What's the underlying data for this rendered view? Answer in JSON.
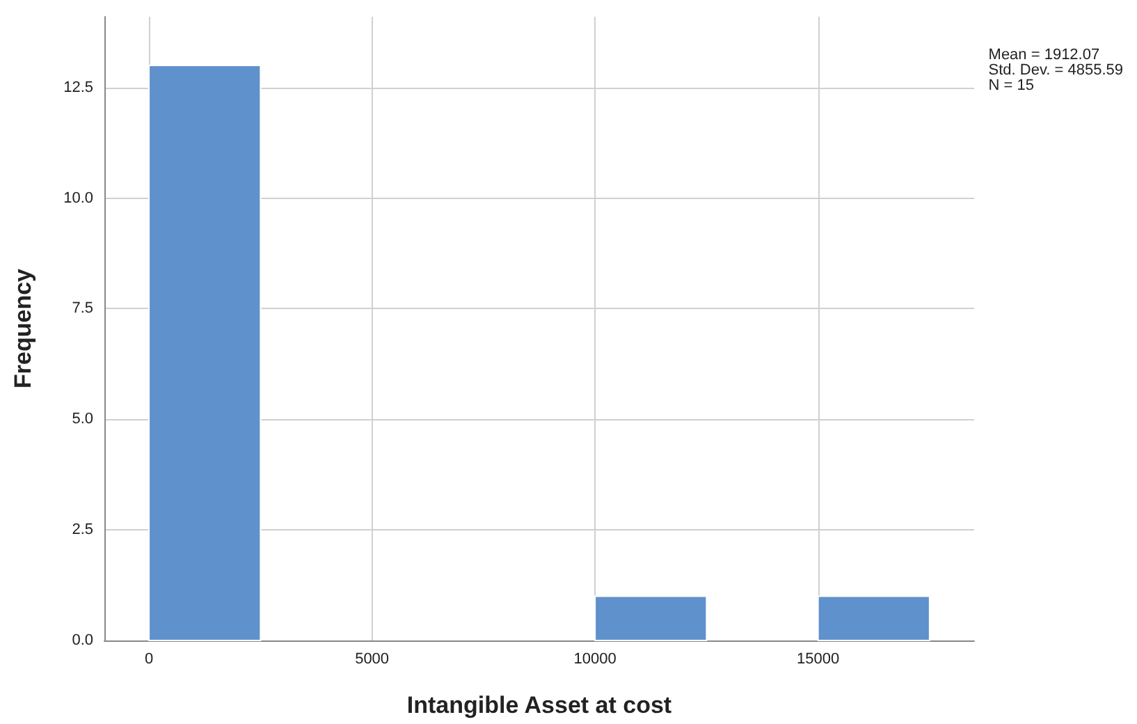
{
  "chart_data": {
    "type": "histogram",
    "xlabel": "Intangible Asset at cost",
    "ylabel": "Frequency",
    "bins": [
      0,
      2500,
      5000,
      7500,
      10000,
      12500,
      15000,
      17500
    ],
    "values": [
      13,
      0,
      0,
      0,
      1,
      0,
      1
    ],
    "color": "#5f91cc",
    "xlim": [
      -1000,
      18500
    ],
    "xticks": [
      0,
      5000,
      10000,
      15000
    ],
    "ylim": [
      0,
      14.1
    ],
    "yticks": [
      {
        "value": 0,
        "label": "0.0"
      },
      {
        "value": 2.5,
        "label": "2.5"
      },
      {
        "value": 5,
        "label": "5.0"
      },
      {
        "value": 7.5,
        "label": "7.5"
      },
      {
        "value": 10,
        "label": "10.0"
      },
      {
        "value": 12.5,
        "label": "12.5"
      }
    ],
    "grid": true,
    "annotations": [
      "Mean = 1912.07",
      "Std. Dev. = 4855.59",
      "N = 15"
    ]
  }
}
